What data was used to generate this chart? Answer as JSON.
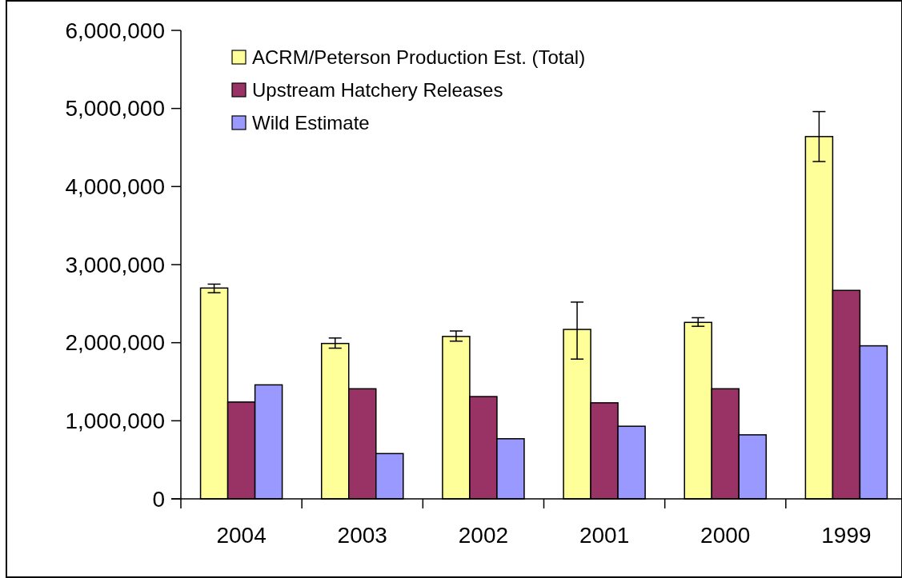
{
  "chart_data": {
    "type": "bar",
    "categories": [
      "2004",
      "2003",
      "2002",
      "2001",
      "2000",
      "1999"
    ],
    "series": [
      {
        "name": "ACRM/Peterson Production Est. (Total)",
        "color": "#ffff99",
        "values": [
          2700000,
          1990000,
          2080000,
          2170000,
          2260000,
          4640000
        ],
        "errors": [
          [
            2640000,
            2750000
          ],
          [
            1930000,
            2060000
          ],
          [
            2020000,
            2150000
          ],
          [
            1790000,
            2520000
          ],
          [
            2210000,
            2320000
          ],
          [
            4320000,
            4960000
          ]
        ]
      },
      {
        "name": "Upstream Hatchery Releases",
        "color": "#993366",
        "values": [
          1240000,
          1410000,
          1310000,
          1230000,
          1410000,
          2670000
        ]
      },
      {
        "name": "Wild Estimate",
        "color": "#9999ff",
        "values": [
          1460000,
          580000,
          770000,
          930000,
          820000,
          1960000
        ]
      }
    ],
    "ylim": [
      0,
      6000000
    ],
    "yticks": [
      {
        "value": 0,
        "label": "0"
      },
      {
        "value": 1000000,
        "label": "1,000,000"
      },
      {
        "value": 2000000,
        "label": "2,000,000"
      },
      {
        "value": 3000000,
        "label": "3,000,000"
      },
      {
        "value": 4000000,
        "label": "4,000,000"
      },
      {
        "value": 5000000,
        "label": "5,000,000"
      },
      {
        "value": 6000000,
        "label": "6,000,000"
      }
    ],
    "legend": "top left",
    "grid": false
  }
}
